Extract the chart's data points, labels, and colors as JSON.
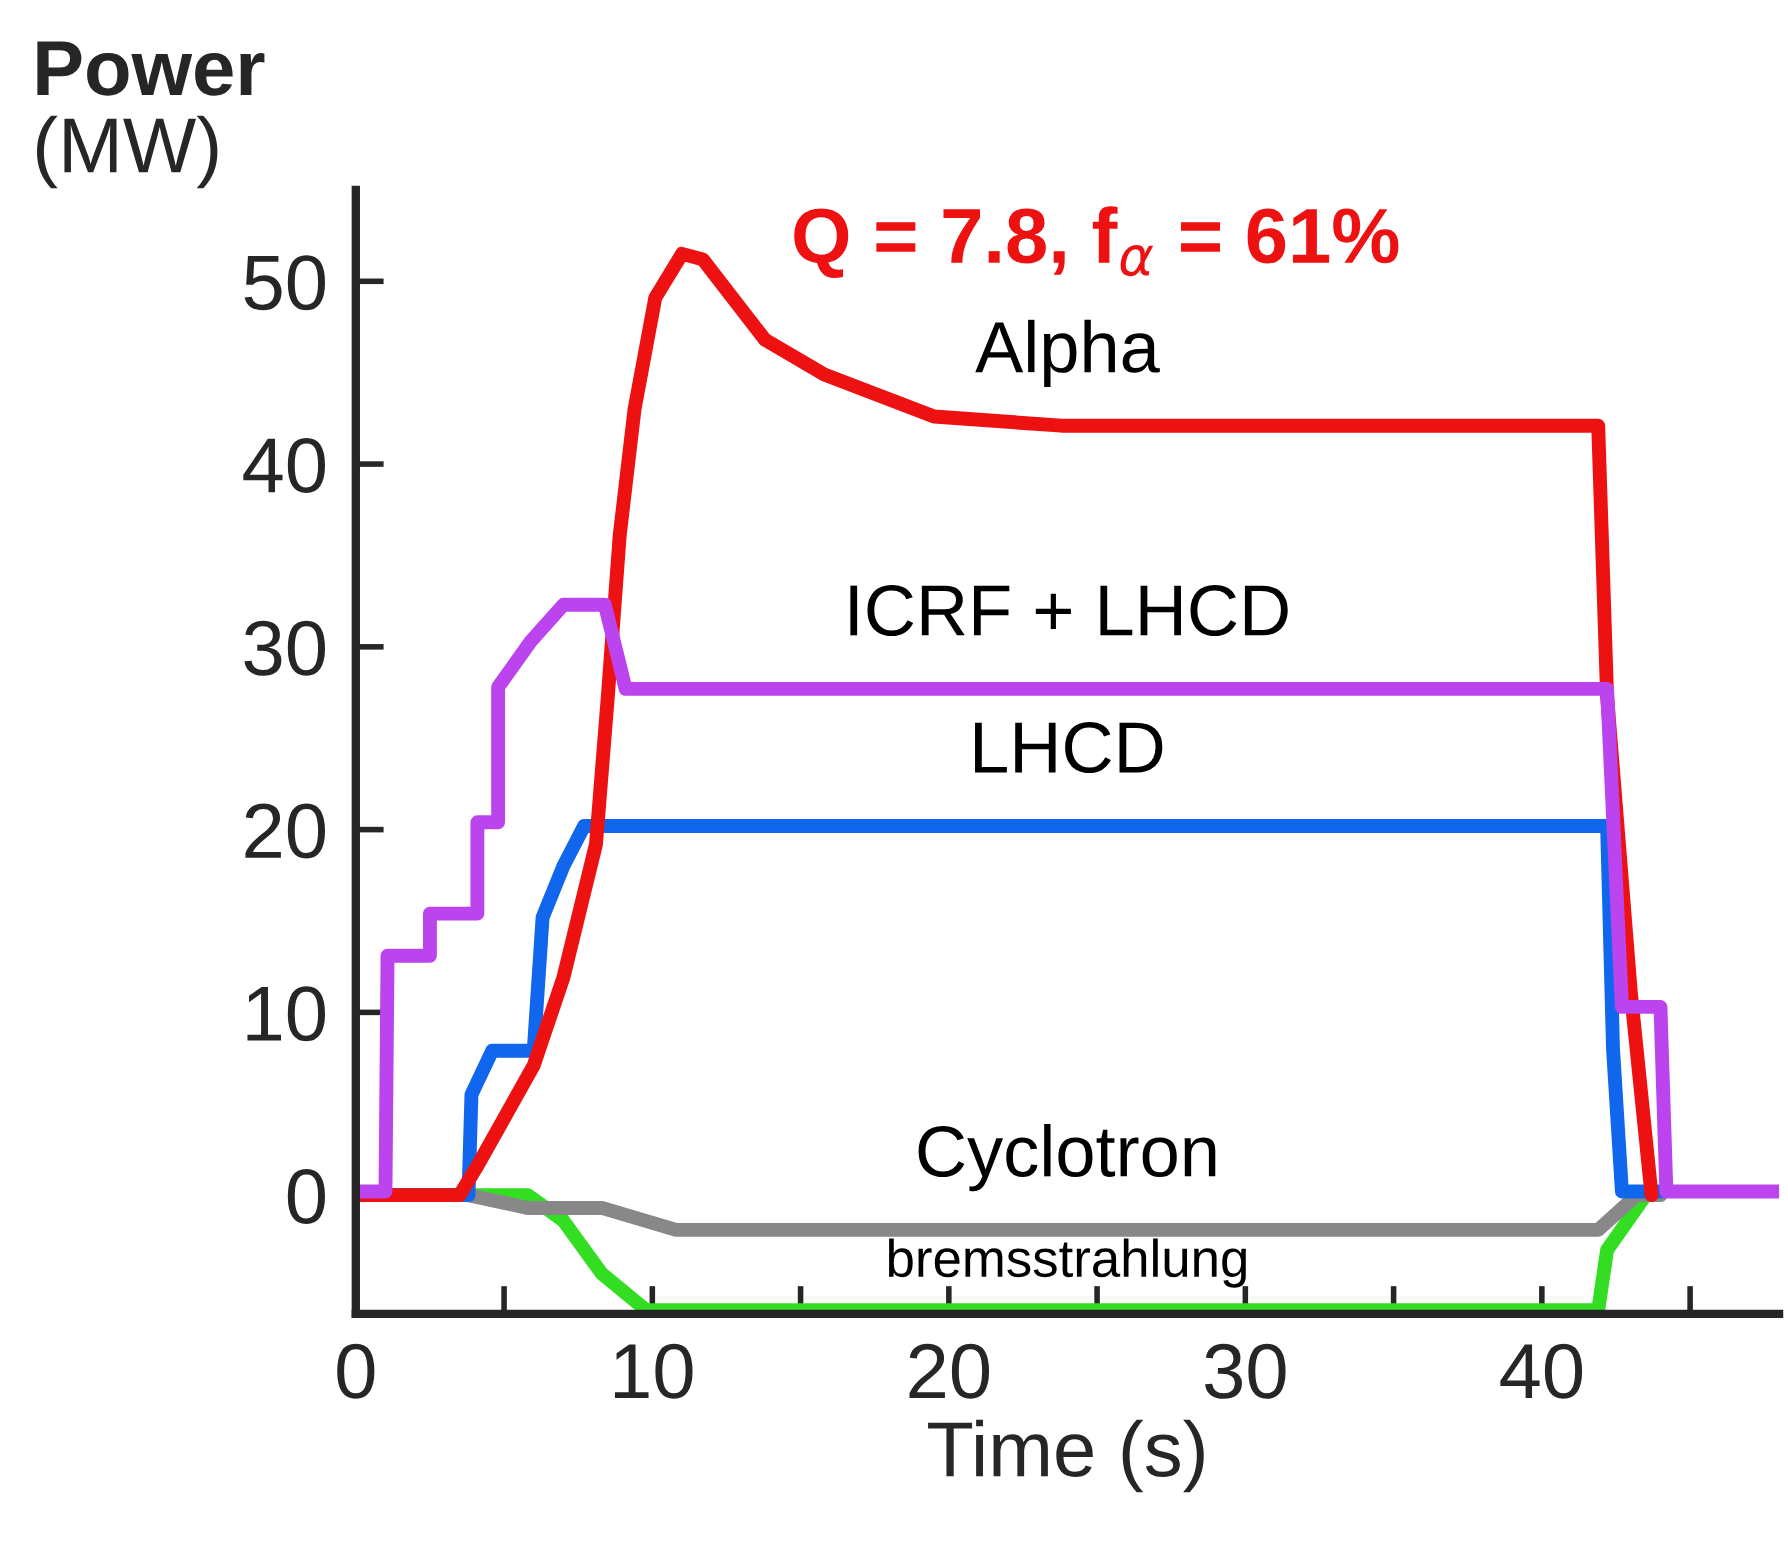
{
  "chart_data": {
    "type": "line",
    "xlabel": "Time (s)",
    "ylabel": "Power\n(MW)",
    "annotations": [
      "Q = 7.8, f$_{α}$ = 61%"
    ],
    "xlim": [
      0,
      48
    ],
    "ylim": [
      -6.5,
      55
    ],
    "xticks": [
      0,
      {
        "value": 5,
        "label": null
      },
      10,
      {
        "value": 15,
        "label": null
      },
      20,
      {
        "value": 25,
        "label": null
      },
      30,
      {
        "value": 35,
        "label": null
      },
      40,
      {
        "value": 45,
        "label": null
      }
    ],
    "yticks": [
      0,
      10,
      20,
      30,
      40,
      50
    ],
    "grid": false,
    "marker": "none",
    "line_style": "solid",
    "series": [
      {
        "name": "bremsstrahlung",
        "color": "#33dd22",
        "x": [
          0,
          3.8,
          5.8,
          7.0,
          8.3,
          9.8,
          41.9,
          42.2,
          43.5,
          44
        ],
        "values": [
          0,
          0,
          0,
          -1.4,
          -4.3,
          -6.3,
          -6.3,
          -3,
          0,
          0
        ]
      },
      {
        "name": "Cyclotron",
        "color": "#888888",
        "x": [
          0,
          3.8,
          5.8,
          8.3,
          10.8,
          41.9,
          43.2,
          44
        ],
        "values": [
          0,
          0,
          -0.7,
          -0.7,
          -1.9,
          -1.9,
          0,
          0
        ]
      },
      {
        "name": "LHCD",
        "color": "#1166ee",
        "x": [
          0,
          3.8,
          3.9,
          4.6,
          6.0,
          6.3,
          7.0,
          7.7,
          42.2,
          42.4,
          42.7,
          44
        ],
        "values": [
          0,
          0,
          5.5,
          7.9,
          7.9,
          15.2,
          18.0,
          20.2,
          20.2,
          8,
          0.2,
          0.2
        ]
      },
      {
        "name": "Alpha",
        "color": "#ee1111",
        "x": [
          0,
          3.5,
          4.1,
          6.0,
          7.0,
          8.1,
          8.5,
          8.9,
          9.4,
          10.1,
          11.0,
          11.7,
          13.8,
          15.8,
          19.5,
          23.8,
          41.9,
          42.2,
          43.0,
          43.7
        ],
        "values": [
          0,
          0,
          1.6,
          7.1,
          11.9,
          19.2,
          27.3,
          36.1,
          43.0,
          49.1,
          51.5,
          51.2,
          46.8,
          44.9,
          42.6,
          42.1,
          42.1,
          27.3,
          11.1,
          0
        ]
      },
      {
        "name": "ICRF + LHCD",
        "color": "#bb44ee",
        "x": [
          0,
          1.0,
          1.07,
          2.5,
          2.5,
          4.1,
          4.1,
          4.8,
          4.8,
          5.9,
          7.0,
          8.4,
          9.1,
          42.2,
          42.7,
          44.0,
          44.2,
          48
        ],
        "values": [
          0.2,
          0.2,
          13.1,
          13.1,
          15.4,
          15.4,
          20.4,
          20.4,
          27.8,
          30.3,
          32.3,
          32.3,
          27.7,
          27.7,
          10.3,
          10.3,
          0.2,
          0.2
        ]
      }
    ]
  }
}
